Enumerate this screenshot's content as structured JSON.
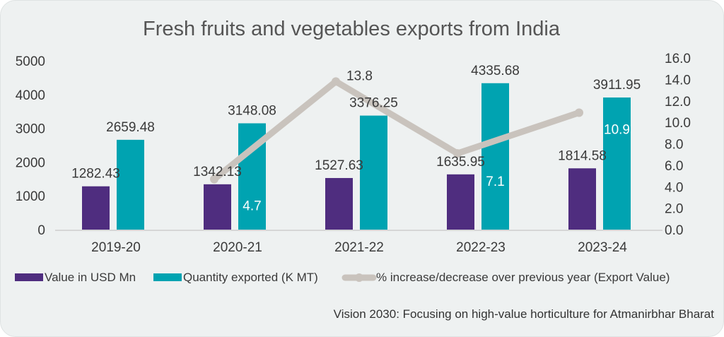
{
  "chart_data": {
    "type": "bar",
    "title": "Fresh fruits and vegetables exports from India",
    "categories": [
      "2019-20",
      "2020-21",
      "2021-22",
      "2022-23",
      "2023-24"
    ],
    "series": [
      {
        "name": "Value in USD Mn",
        "type": "bar",
        "axis": "left",
        "color": "#4f2d7f",
        "values": [
          1282.43,
          1342.13,
          1527.63,
          1635.95,
          1814.58
        ],
        "labels": [
          "1282.43",
          "1342.13",
          "1527.63",
          "1635.95",
          "1814.58"
        ]
      },
      {
        "name": "Quantity exported (K MT)",
        "type": "bar",
        "axis": "left",
        "color": "#00a3b1",
        "values": [
          2659.48,
          3148.08,
          3376.25,
          4335.68,
          3911.95
        ],
        "labels": [
          "2659.48",
          "3148.08",
          "3376.25",
          "4335.68",
          "3911.95"
        ]
      },
      {
        "name": "% increase/decrease over previous year (Export Value)",
        "type": "line",
        "axis": "right",
        "color": "#c9c3bd",
        "values": [
          null,
          4.7,
          13.8,
          7.1,
          10.9
        ],
        "labels": [
          "",
          "4.7",
          "13.8",
          "7.1",
          "10.9"
        ]
      }
    ],
    "y_left": {
      "range": [
        0,
        5000
      ],
      "ticks": [
        "0",
        "1000",
        "2000",
        "3000",
        "4000",
        "5000"
      ]
    },
    "y_right": {
      "range": [
        0,
        16
      ],
      "ticks": [
        "0.0",
        "2.0",
        "4.0",
        "6.0",
        "8.0",
        "10.0",
        "12.0",
        "14.0",
        "16.0"
      ]
    },
    "grid": false,
    "legend_position": "bottom"
  },
  "footer": "Vision 2030: Focusing on high-value horticulture for Atmanirbhar Bharat"
}
